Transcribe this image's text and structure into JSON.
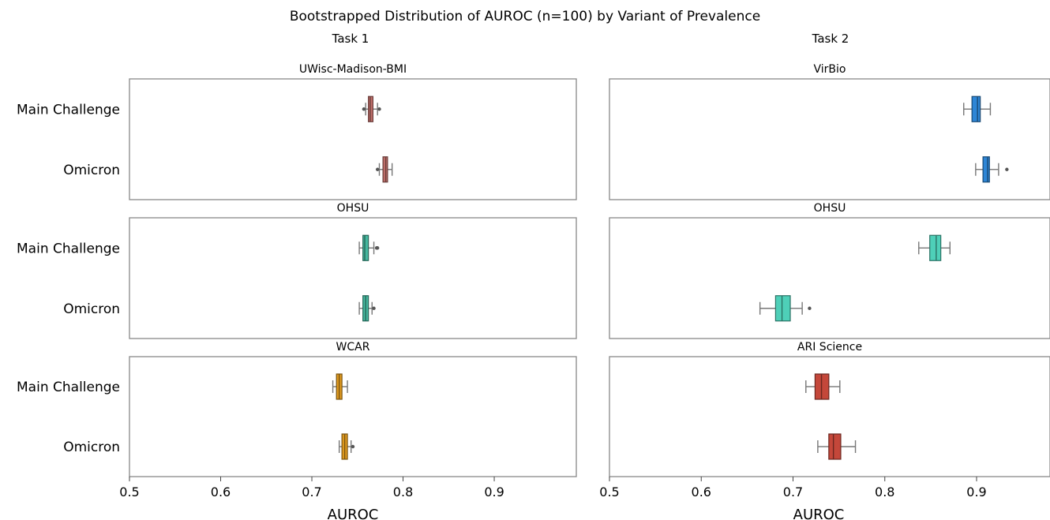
{
  "title": "Bootstrapped Distribution of AUROC (n=100) by Variant of Prevalence",
  "columns": [
    "Task 1",
    "Task 2"
  ],
  "chart_data": [
    {
      "type": "box",
      "column": "Task 1",
      "title": "UWisc-Madison-BMI",
      "categories": [
        "Main Challenge",
        "Omicron"
      ],
      "color": "#c0706b",
      "xlabel": "",
      "xlim": [
        0.5,
        0.99
      ],
      "xticks": [],
      "boxes": [
        {
          "category": "Main Challenge",
          "whislo": 0.759,
          "q1": 0.762,
          "med": 0.764,
          "q3": 0.767,
          "whishi": 0.772,
          "fliers": [
            0.774,
            0.757
          ]
        },
        {
          "category": "Omicron",
          "whislo": 0.774,
          "q1": 0.778,
          "med": 0.781,
          "q3": 0.783,
          "whishi": 0.788,
          "fliers": [
            0.772
          ]
        }
      ]
    },
    {
      "type": "box",
      "column": "Task 2",
      "title": "VirBio",
      "categories": [
        "Main Challenge",
        "Omicron"
      ],
      "color": "#2e86d6",
      "xlabel": "",
      "xlim": [
        0.5,
        0.98
      ],
      "xticks": [],
      "boxes": [
        {
          "category": "Main Challenge",
          "whislo": 0.886,
          "q1": 0.895,
          "med": 0.901,
          "q3": 0.904,
          "whishi": 0.915,
          "fliers": []
        },
        {
          "category": "Omicron",
          "whislo": 0.899,
          "q1": 0.907,
          "med": 0.912,
          "q3": 0.914,
          "whishi": 0.924,
          "fliers": [
            0.933
          ]
        }
      ]
    },
    {
      "type": "box",
      "column": "Task 1",
      "title": "OHSU",
      "categories": [
        "Main Challenge",
        "Omicron"
      ],
      "color": "#45b89f",
      "xlabel": "",
      "xlim": [
        0.5,
        0.99
      ],
      "xticks": [],
      "boxes": [
        {
          "category": "Main Challenge",
          "whislo": 0.752,
          "q1": 0.756,
          "med": 0.758,
          "q3": 0.762,
          "whishi": 0.768,
          "fliers": [
            0.771,
            0.772
          ]
        },
        {
          "category": "Omicron",
          "whislo": 0.752,
          "q1": 0.756,
          "med": 0.759,
          "q3": 0.762,
          "whishi": 0.766,
          "fliers": [
            0.768
          ]
        }
      ]
    },
    {
      "type": "box",
      "column": "Task 2",
      "title": "OHSU",
      "categories": [
        "Main Challenge",
        "Omicron"
      ],
      "color": "#4ecfb8",
      "xlabel": "",
      "xlim": [
        0.5,
        0.98
      ],
      "xticks": [],
      "boxes": [
        {
          "category": "Main Challenge",
          "whislo": 0.837,
          "q1": 0.849,
          "med": 0.856,
          "q3": 0.861,
          "whishi": 0.871,
          "fliers": []
        },
        {
          "category": "Omicron",
          "whislo": 0.664,
          "q1": 0.681,
          "med": 0.688,
          "q3": 0.697,
          "whishi": 0.71,
          "fliers": [
            0.718
          ]
        }
      ]
    },
    {
      "type": "box",
      "column": "Task 1",
      "title": "WCAR",
      "categories": [
        "Main Challenge",
        "Omicron"
      ],
      "color": "#e09a1f",
      "xlabel": "AUROC",
      "xlim": [
        0.5,
        0.99
      ],
      "xticks": [
        0.5,
        0.6,
        0.7,
        0.8,
        0.9
      ],
      "boxes": [
        {
          "category": "Main Challenge",
          "whislo": 0.723,
          "q1": 0.727,
          "med": 0.73,
          "q3": 0.733,
          "whishi": 0.739,
          "fliers": []
        },
        {
          "category": "Omicron",
          "whislo": 0.73,
          "q1": 0.733,
          "med": 0.736,
          "q3": 0.739,
          "whishi": 0.743,
          "fliers": [
            0.745
          ]
        }
      ]
    },
    {
      "type": "box",
      "column": "Task 2",
      "title": "ARI Science",
      "categories": [
        "Main Challenge",
        "Omicron"
      ],
      "color": "#c4473a",
      "xlabel": "AUROC",
      "xlim": [
        0.5,
        0.98
      ],
      "xticks": [
        0.5,
        0.6,
        0.7,
        0.8,
        0.9
      ],
      "boxes": [
        {
          "category": "Main Challenge",
          "whislo": 0.714,
          "q1": 0.724,
          "med": 0.731,
          "q3": 0.739,
          "whishi": 0.751,
          "fliers": []
        },
        {
          "category": "Omicron",
          "whislo": 0.727,
          "q1": 0.739,
          "med": 0.744,
          "q3": 0.752,
          "whishi": 0.768,
          "fliers": []
        }
      ]
    }
  ]
}
